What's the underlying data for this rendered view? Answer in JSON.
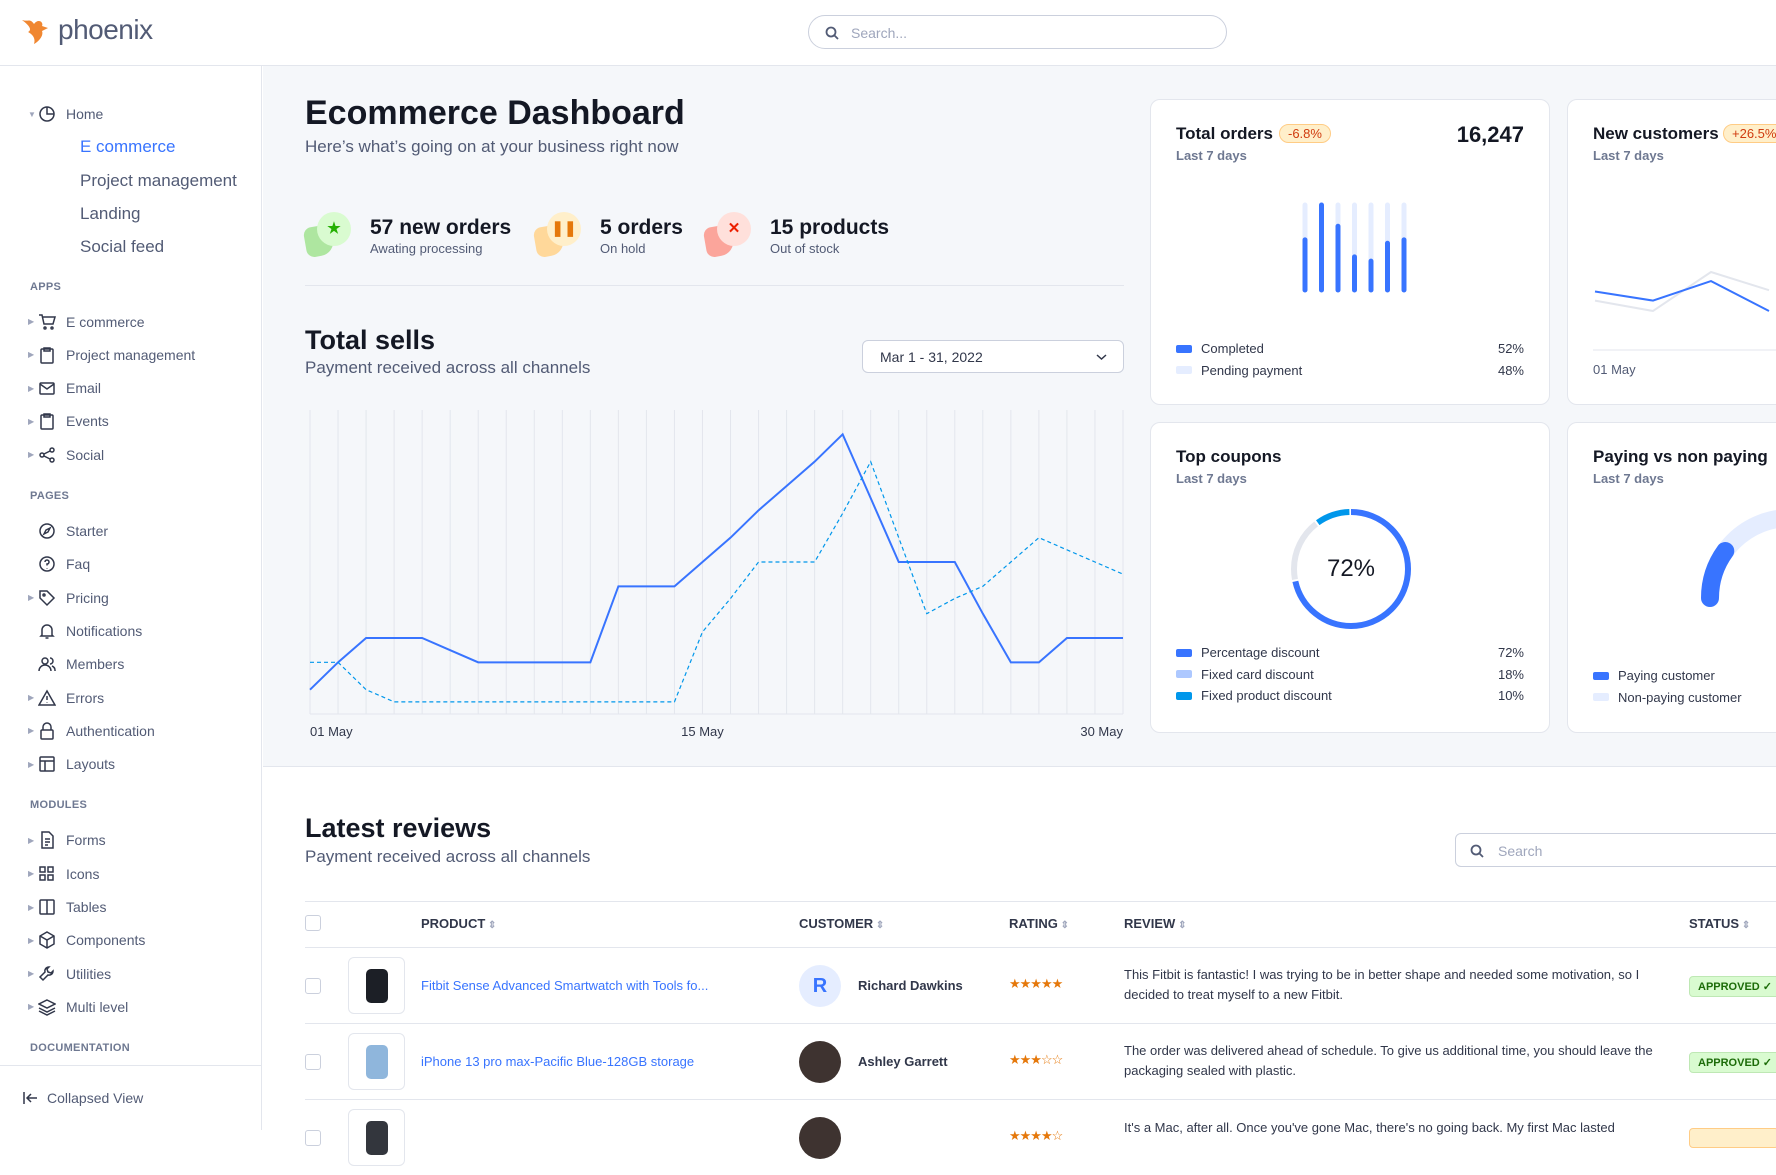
{
  "brand": {
    "name": "phoenix",
    "logo_color": "#f08731"
  },
  "header": {
    "search_placeholder": "Search..."
  },
  "sidebar": {
    "home": {
      "label": "Home",
      "icon": "pie-chart-icon",
      "children": [
        "E commerce",
        "Project management",
        "Landing",
        "Social feed"
      ],
      "active_child": 0
    },
    "sections": [
      {
        "title": "APPS",
        "items": [
          {
            "label": "E commerce",
            "icon": "cart-icon",
            "caret": true
          },
          {
            "label": "Project management",
            "icon": "clipboard-icon",
            "caret": true
          },
          {
            "label": "Email",
            "icon": "mail-icon",
            "caret": true
          },
          {
            "label": "Events",
            "icon": "clipboard-icon",
            "caret": true
          },
          {
            "label": "Social",
            "icon": "share-icon",
            "caret": true
          }
        ]
      },
      {
        "title": "PAGES",
        "items": [
          {
            "label": "Starter",
            "icon": "compass-icon",
            "caret": false
          },
          {
            "label": "Faq",
            "icon": "help-circle-icon",
            "caret": false
          },
          {
            "label": "Pricing",
            "icon": "tag-icon",
            "caret": true
          },
          {
            "label": "Notifications",
            "icon": "bell-icon",
            "caret": false
          },
          {
            "label": "Members",
            "icon": "users-icon",
            "caret": false
          },
          {
            "label": "Errors",
            "icon": "alert-triangle-icon",
            "caret": true
          },
          {
            "label": "Authentication",
            "icon": "lock-icon",
            "caret": true
          },
          {
            "label": "Layouts",
            "icon": "layout-icon",
            "caret": true
          }
        ]
      },
      {
        "title": "MODULES",
        "items": [
          {
            "label": "Forms",
            "icon": "file-text-icon",
            "caret": true
          },
          {
            "label": "Icons",
            "icon": "grid-icon",
            "caret": true
          },
          {
            "label": "Tables",
            "icon": "columns-icon",
            "caret": true
          },
          {
            "label": "Components",
            "icon": "package-icon",
            "caret": true
          },
          {
            "label": "Utilities",
            "icon": "tool-icon",
            "caret": true
          },
          {
            "label": "Multi level",
            "icon": "layers-icon",
            "caret": true
          }
        ]
      },
      {
        "title": "DOCUMENTATION",
        "items": []
      }
    ],
    "collapse_label": "Collapsed View"
  },
  "dashboard": {
    "title": "Ecommerce Dashboard",
    "subtitle": "Here’s what’s going on at your business right now",
    "stats": [
      {
        "value": "57 new orders",
        "label": "Awating processing",
        "icon": "star-icon",
        "color": "#25b003",
        "bg": "#d9fbd0",
        "blob": "#aee6a0"
      },
      {
        "value": "5 orders",
        "label": "On hold",
        "icon": "pause-icon",
        "color": "#e5780b",
        "bg": "#ffefca",
        "blob": "#ffd89a"
      },
      {
        "value": "15 products",
        "label": "Out of stock",
        "icon": "x-icon",
        "color": "#ec1f00",
        "bg": "#ffe0db",
        "blob": "#fba59b"
      }
    ]
  },
  "total_sells": {
    "title": "Total sells",
    "subtitle": "Payment received across all channels",
    "date_range": "Mar 1 - 31, 2022"
  },
  "chart_data": [
    {
      "type": "line",
      "x": [
        1,
        2,
        3,
        4,
        5,
        6,
        7,
        8,
        9,
        10,
        11,
        12,
        13,
        14,
        15,
        16,
        17,
        18,
        19,
        20,
        21,
        22,
        23,
        24,
        25,
        26,
        27,
        28,
        29,
        30
      ],
      "x_tick_labels": [
        "01 May",
        "15 May",
        "30 May"
      ],
      "x_ticks": [
        1,
        15,
        30
      ],
      "grid": "vertical",
      "series": [
        {
          "style": "solid",
          "color": "#3874ff",
          "values": [
            8,
            17,
            25,
            25,
            25,
            21,
            17,
            17,
            17,
            17,
            17,
            42,
            42,
            42,
            50,
            58,
            67,
            75,
            83,
            92,
            71,
            50,
            50,
            50,
            33,
            17,
            17,
            25,
            25,
            25
          ]
        },
        {
          "style": "dashed",
          "color": "#0097eb",
          "values": [
            17,
            17,
            8,
            4,
            4,
            4,
            4,
            4,
            4,
            4,
            4,
            4,
            4,
            4,
            27,
            38,
            50,
            50,
            50,
            66,
            83,
            58,
            33,
            38,
            42,
            50,
            58,
            54,
            50,
            46
          ]
        }
      ]
    },
    {
      "type": "bar",
      "title": "Total orders",
      "series": [
        {
          "name": "Completed",
          "values": [
            59,
            100,
            75,
            39,
            34,
            55,
            59
          ]
        }
      ],
      "max": 100
    },
    {
      "type": "line",
      "title": "New customers",
      "x_tick_labels": [
        "01 May"
      ],
      "series": [
        {
          "color": "#3874ff",
          "values": [
            45,
            38,
            53,
            30
          ]
        },
        {
          "color": "#e3e6ed",
          "values": [
            38,
            30,
            60,
            46
          ]
        }
      ]
    },
    {
      "type": "pie",
      "title": "Top coupons",
      "center_label": "72%",
      "series": [
        {
          "name": "Percentage discount",
          "value": 72,
          "color": "#3874ff"
        },
        {
          "name": "Fixed card discount",
          "value": 18,
          "color": "#e3e6ed"
        },
        {
          "name": "Fixed product discount",
          "value": 10,
          "color": "#0097eb"
        }
      ]
    },
    {
      "type": "gauge",
      "title": "Paying vs non paying",
      "paying_fraction": 0.2
    }
  ],
  "cards": {
    "total_orders": {
      "title": "Total orders",
      "badge": "-6.8%",
      "value": "16,247",
      "period": "Last 7 days",
      "legend": [
        {
          "label": "Completed",
          "pct": "52%",
          "color": "#3874ff"
        },
        {
          "label": "Pending payment",
          "pct": "48%",
          "color": "#e5edff"
        }
      ]
    },
    "new_customers": {
      "title": "New customers",
      "badge": "+26.5%",
      "period": "Last 7 days",
      "x_label": "01 May"
    },
    "top_coupons": {
      "title": "Top coupons",
      "period": "Last 7 days",
      "center": "72%",
      "legend": [
        {
          "label": "Percentage discount",
          "pct": "72%",
          "color": "#3874ff"
        },
        {
          "label": "Fixed card discount",
          "pct": "18%",
          "color": "#adc8ff"
        },
        {
          "label": "Fixed product discount",
          "pct": "10%",
          "color": "#0097eb"
        }
      ]
    },
    "paying": {
      "title": "Paying vs non paying",
      "period": "Last 7 days",
      "legend": [
        {
          "label": "Paying customer",
          "color": "#3874ff"
        },
        {
          "label": "Non-paying customer",
          "color": "#e5edff"
        }
      ]
    }
  },
  "reviews": {
    "title": "Latest reviews",
    "subtitle": "Payment received across all channels",
    "search_placeholder": "Search",
    "columns": [
      "PRODUCT",
      "CUSTOMER",
      "RATING",
      "REVIEW",
      "STATUS"
    ],
    "rows": [
      {
        "product": "Fitbit Sense Advanced Smartwatch with Tools fo...",
        "customer": "Richard Dawkins",
        "avatar_initial": "R",
        "rating": 5,
        "review": "This Fitbit is fantastic! I was trying to be in better shape and needed some motivation, so I decided to treat myself to a new Fitbit.",
        "status": "APPROVED ✓"
      },
      {
        "product": "iPhone 13 pro max-Pacific Blue-128GB storage",
        "customer": "Ashley Garrett",
        "avatar_initial": "",
        "rating": 3,
        "review": "The order was delivered ahead of schedule. To give us additional time, you should leave the packaging sealed with plastic.",
        "status": "APPROVED ✓"
      },
      {
        "product": "",
        "customer": "",
        "avatar_initial": "",
        "rating": 4,
        "review": "It's a Mac, after all. Once you've gone Mac, there's no going back. My first Mac lasted",
        "status": ""
      }
    ]
  }
}
